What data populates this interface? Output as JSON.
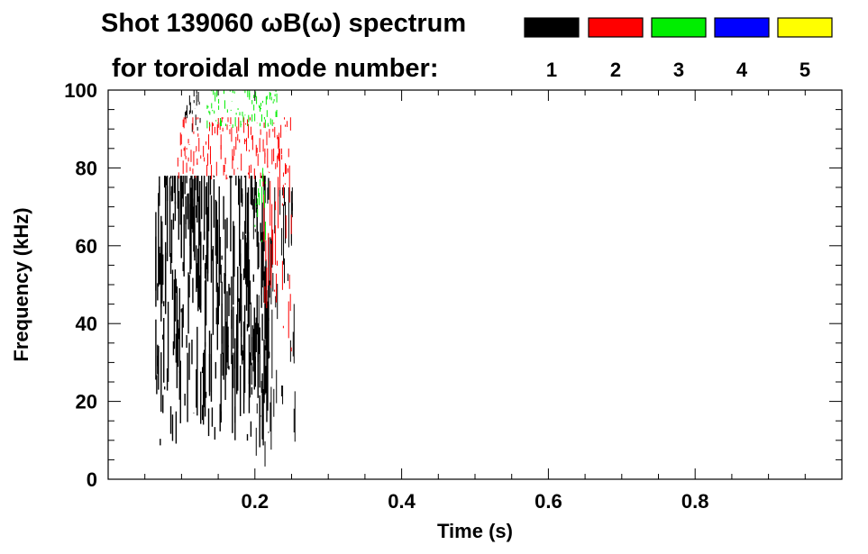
{
  "chart_data": {
    "type": "heatmap",
    "title_line1": "Shot 139060 ωB(ω) spectrum",
    "title_line2": "for toroidal mode number:",
    "xlabel": "Time (s)",
    "ylabel": "Frequency (kHz)",
    "xlim": [
      0.0,
      1.0
    ],
    "ylim": [
      0,
      100
    ],
    "x_ticks": [
      0.2,
      0.4,
      0.6,
      0.8
    ],
    "x_tick_labels": [
      "0.2",
      "0.4",
      "0.6",
      "0.8"
    ],
    "y_ticks": [
      0,
      20,
      40,
      60,
      80,
      100
    ],
    "y_tick_labels": [
      "0",
      "20",
      "40",
      "60",
      "80",
      "100"
    ],
    "legend_position": "top-right",
    "modes": [
      {
        "label": "1",
        "color": "#000000"
      },
      {
        "label": "2",
        "color": "#ff0000"
      },
      {
        "label": "3",
        "color": "#00ee00"
      },
      {
        "label": "4",
        "color": "#0000ff"
      },
      {
        "label": "5",
        "color": "#ffff00"
      }
    ],
    "regions": [
      {
        "mode": "1",
        "t": [
          0.065,
          0.22
        ],
        "f": [
          8,
          78
        ],
        "note": "dense band"
      },
      {
        "mode": "1",
        "t": [
          0.105,
          0.13
        ],
        "f": [
          88,
          100
        ]
      },
      {
        "mode": "1",
        "t": [
          0.185,
          0.255
        ],
        "f": [
          2,
          75
        ]
      },
      {
        "mode": "2",
        "t": [
          0.095,
          0.25
        ],
        "f": [
          77,
          93
        ]
      },
      {
        "mode": "2",
        "t": [
          0.21,
          0.25
        ],
        "f": [
          30,
          85
        ]
      },
      {
        "mode": "3",
        "t": [
          0.135,
          0.23
        ],
        "f": [
          90,
          100
        ]
      },
      {
        "mode": "3",
        "t": [
          0.2,
          0.215
        ],
        "f": [
          60,
          80
        ]
      }
    ]
  }
}
